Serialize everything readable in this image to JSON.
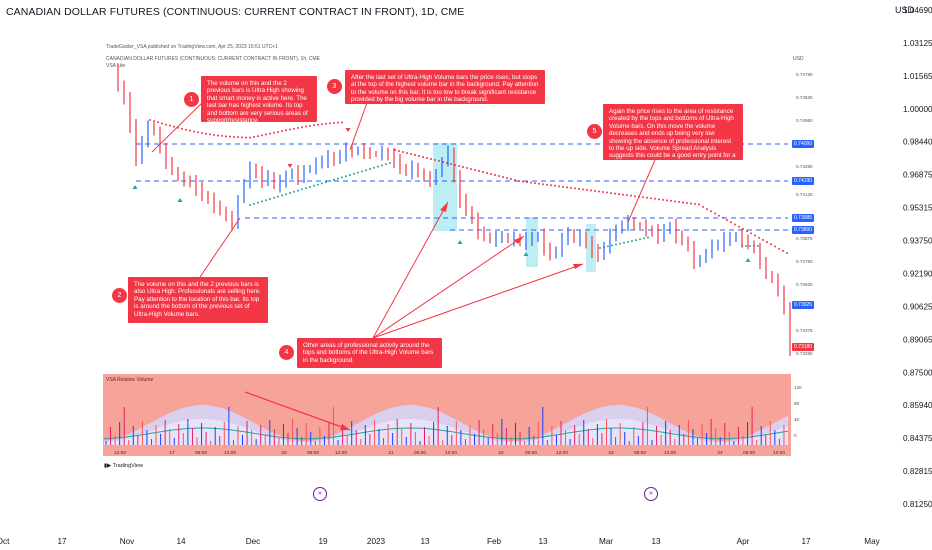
{
  "header": {
    "title": "CANADIAN DOLLAR FUTURES (CONTINUOUS: CURRENT CONTRACT IN FRONT), 1D, CME",
    "currency": "USD"
  },
  "inner_chart": {
    "publisher": "TradeGuider_VSA published on TradingView.com, Apr 25, 2023 16:51 UTC+1",
    "symbol_line": "CANADIAN DOLLAR FUTURES (CONTINUOUS: CURRENT CONTRACT IN FRONT), 1h, CME",
    "indicator": "VSA Lite",
    "currency": "USD",
    "volume_panel_label": "VSA Relative Volume",
    "logo": "TradingView",
    "price_boxes": [
      {
        "value": "0.74090",
        "color": "#2962ff"
      },
      {
        "value": "0.74190",
        "color": "#2962ff"
      },
      {
        "value": "0.73985",
        "color": "#2962ff"
      },
      {
        "value": "0.73890",
        "color": "#2962ff"
      },
      {
        "value": "0.73925",
        "color": "#2962ff"
      },
      {
        "value": "0.73180",
        "color": "#f23645"
      }
    ],
    "vol_ticks": [
      "12K",
      "8K",
      "4K",
      "0"
    ],
    "time_ticks": [
      "12:00",
      "17",
      "06:00",
      "12:00",
      "20",
      "06:00",
      "12:00",
      "21",
      "06:00",
      "12:00",
      "22",
      "06:00",
      "12:00",
      "23",
      "06:00",
      "12:00",
      "24",
      "06:00",
      "12:00"
    ],
    "price_ticks": [
      "0.74790",
      "0.74625",
      "0.74560",
      "0.74290",
      "0.74125",
      "0.73875",
      "0.73750",
      "0.73625",
      "0.73375",
      "0.73290"
    ]
  },
  "annotations": [
    {
      "n": "1",
      "text": "The volume on this and the 2 previous bars is Ultra High showing that smart money is active here. The last bar has highest volume. Its top and bottom are very serious areas of support/resistance."
    },
    {
      "n": "2",
      "text": "The volume on this and the 2 previous bars is also Ultra High. Professionals are selling here. Pay attention to the location of this bar. Its top is around the bottom of the previous set of Ultra-High Volume bars."
    },
    {
      "n": "3",
      "text": "After the last set of Ultra-High Volume bars the price rises, but stops at the top of the highest volume bar in the background. Pay attention to the volume on this bar. It is too low to break significant resistance provided by the big volume bar in the background."
    },
    {
      "n": "4",
      "text": "Other areas of professional activity around the tops and bottoms of the Ultra-High Volume bars in the background."
    },
    {
      "n": "5",
      "text": "Again the price rises to the area of resistance created by the tops and bottoms of Ultra-High Volume bars. On this move the volume decreases and ends up being very low showing the absence of professional interest to the up side. Volume Spread Analysis suggests this could be a good entry point for a short trade."
    }
  ],
  "chart_data": {
    "type": "line",
    "title": "CANADIAN DOLLAR FUTURES (CONTINUOUS: CURRENT CONTRACT IN FRONT), 1D, CME",
    "y_axis": {
      "ticks": [
        1.0469,
        1.03125,
        1.01565,
        1.0,
        0.9844,
        0.96875,
        0.95315,
        0.9375,
        0.9219,
        0.90625,
        0.89065,
        0.875,
        0.8594,
        0.84375,
        0.82815,
        0.8125
      ],
      "tick_labels": [
        "1.04690",
        "1.03125",
        "1.01565",
        "1.00000",
        "0.98440",
        "0.96875",
        "0.95315",
        "0.93750",
        "0.92190",
        "0.90625",
        "0.89065",
        "0.87500",
        "0.85940",
        "0.84375",
        "0.82815",
        "0.81250"
      ],
      "ylim": [
        0.8125,
        1.0469
      ],
      "unit": "USD"
    },
    "x_axis": {
      "tick_labels": [
        "Oct",
        "17",
        "Nov",
        "14",
        "Dec",
        "19",
        "2023",
        "13",
        "Feb",
        "13",
        "Mar",
        "13",
        "Apr",
        "17",
        "May"
      ]
    },
    "grid": false
  },
  "colors": {
    "up": "#2962ff",
    "down": "#f23645",
    "annotation": "#f23645",
    "level": "#2962ff",
    "highlight": "#b2ebf2",
    "stop_dots": "#f23645",
    "support_dots": "#26a69a",
    "volume_bg": "#f6a39a"
  },
  "icons": [
    "replay-icon",
    "tradingview-logo-icon"
  ]
}
